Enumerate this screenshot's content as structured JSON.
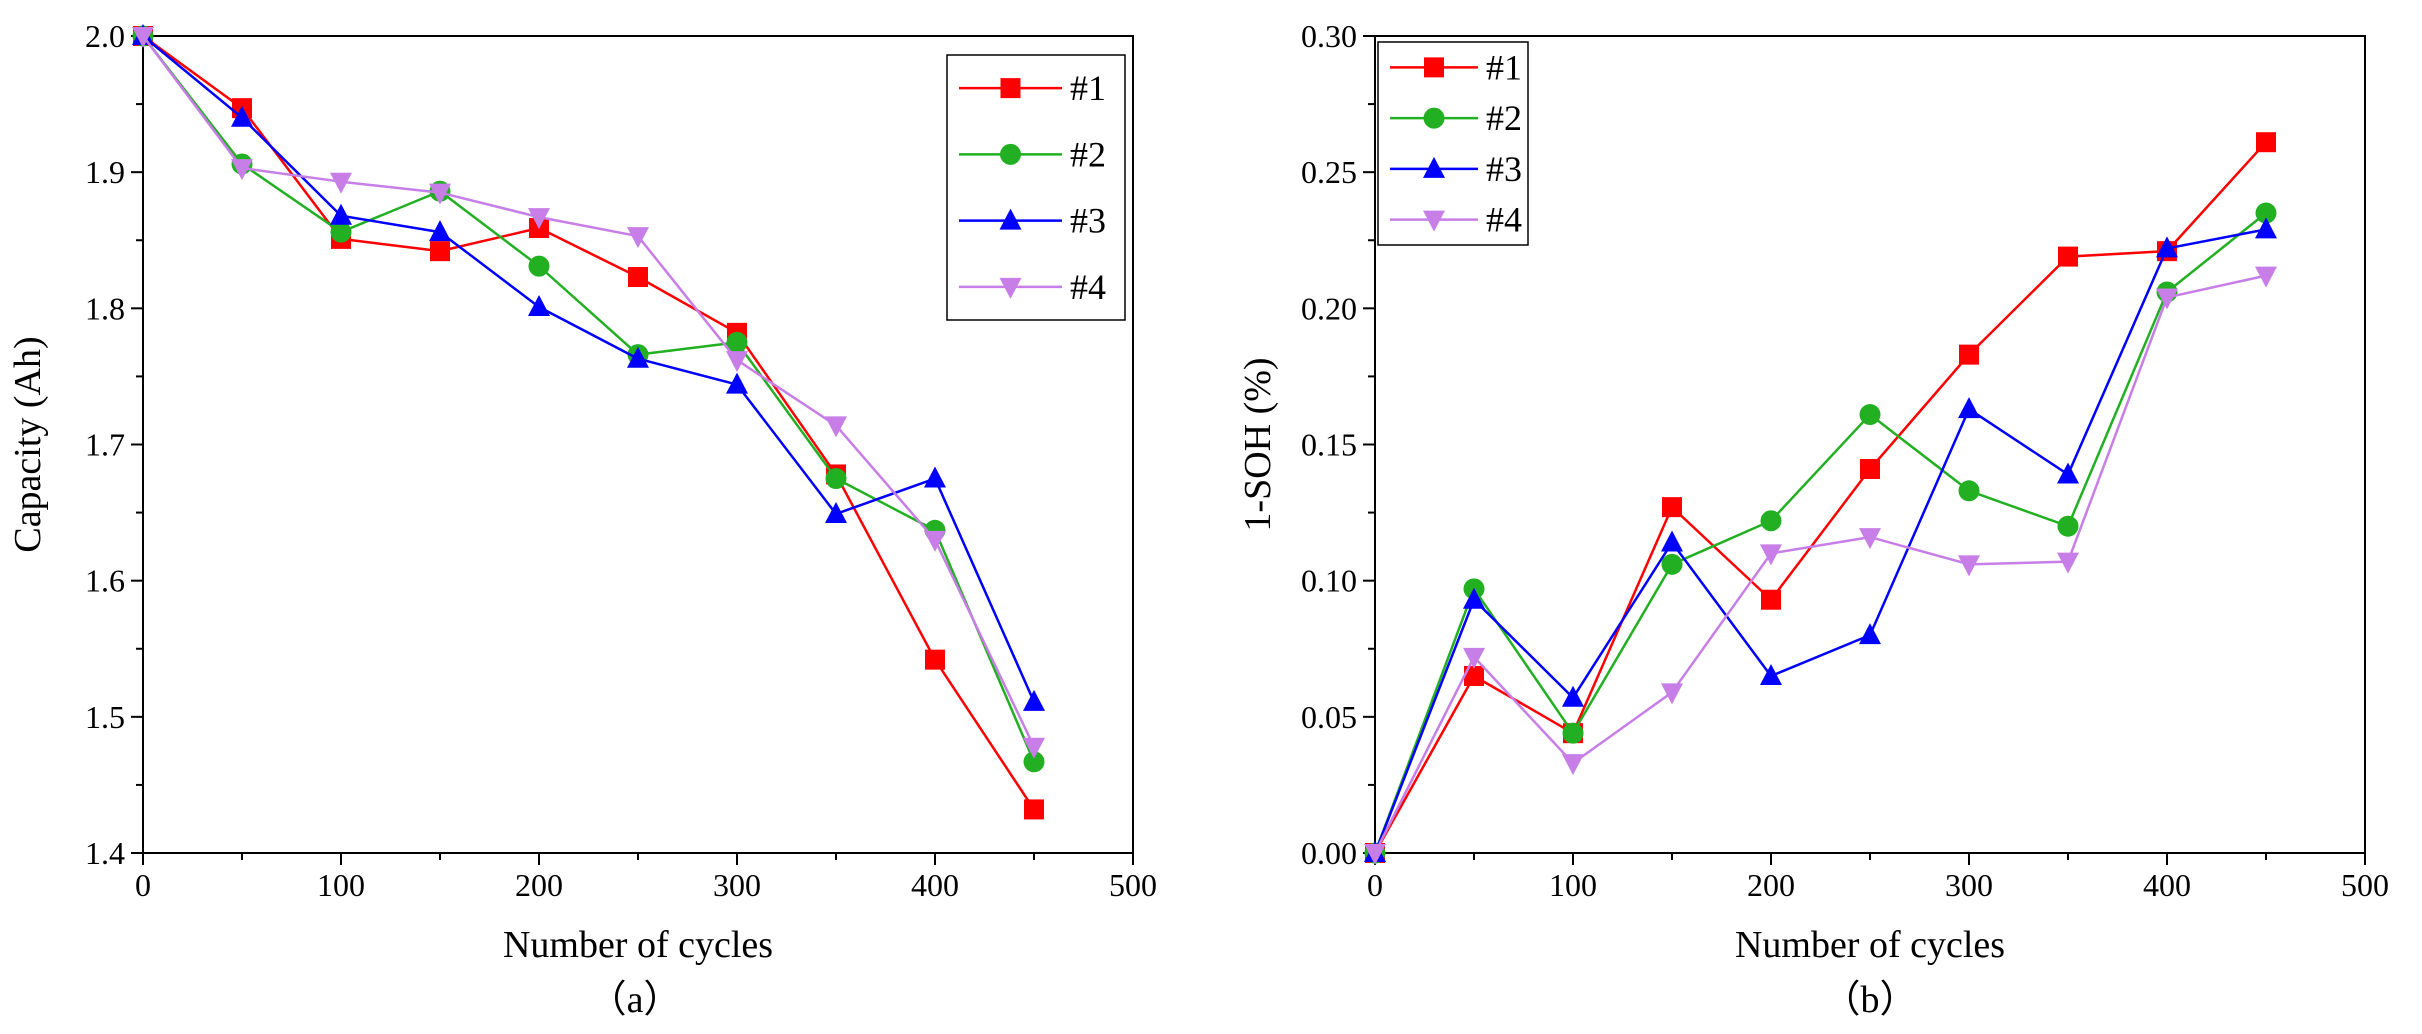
{
  "chart_data": [
    {
      "type": "line",
      "caption": "（a）",
      "xlabel": "Number of cycles",
      "ylabel": "Capacity (Ah)",
      "xlim": [
        0,
        500
      ],
      "ylim": [
        1.4,
        2.0
      ],
      "xticks": [
        0,
        100,
        200,
        300,
        400,
        500
      ],
      "yticks": [
        1.4,
        1.5,
        1.6,
        1.7,
        1.8,
        1.9,
        2.0
      ],
      "xtick_labels": [
        "0",
        "100",
        "200",
        "300",
        "400",
        "500"
      ],
      "ytick_labels": [
        "1.4",
        "1.5",
        "1.6",
        "1.7",
        "1.8",
        "1.9",
        "2.0"
      ],
      "legend_position": "top-right",
      "x": [
        0,
        50,
        100,
        150,
        200,
        250,
        300,
        350,
        400,
        450
      ],
      "series": [
        {
          "name": "#1",
          "color": "#ff0000",
          "marker": "square",
          "values": [
            2.0,
            1.947,
            1.851,
            1.842,
            1.859,
            1.823,
            1.782,
            1.678,
            1.542,
            1.432
          ]
        },
        {
          "name": "#2",
          "color": "#22b022",
          "marker": "circle",
          "values": [
            2.0,
            1.906,
            1.856,
            1.886,
            1.831,
            1.766,
            1.775,
            1.675,
            1.637,
            1.467
          ]
        },
        {
          "name": "#3",
          "color": "#0000ff",
          "marker": "triangle-up",
          "values": [
            2.0,
            1.94,
            1.868,
            1.856,
            1.801,
            1.763,
            1.744,
            1.649,
            1.675,
            1.511
          ]
        },
        {
          "name": "#4",
          "color": "#c77ee6",
          "marker": "triangle-down",
          "values": [
            2.0,
            1.903,
            1.893,
            1.885,
            1.867,
            1.853,
            1.762,
            1.714,
            1.63,
            1.478
          ]
        }
      ]
    },
    {
      "type": "line",
      "caption": "（b）",
      "xlabel": "Number of cycles",
      "ylabel": "1-SOH (%)",
      "xlim": [
        0,
        500
      ],
      "ylim": [
        0.0,
        0.3
      ],
      "xticks": [
        0,
        100,
        200,
        300,
        400,
        500
      ],
      "yticks": [
        0.0,
        0.05,
        0.1,
        0.15,
        0.2,
        0.25,
        0.3
      ],
      "xtick_labels": [
        "0",
        "100",
        "200",
        "300",
        "400",
        "500"
      ],
      "ytick_labels": [
        "0.00",
        "0.05",
        "0.10",
        "0.15",
        "0.20",
        "0.25",
        "0.30"
      ],
      "legend_position": "top-left",
      "x": [
        0,
        50,
        100,
        150,
        200,
        250,
        300,
        350,
        400,
        450
      ],
      "series": [
        {
          "name": "#1",
          "color": "#ff0000",
          "marker": "square",
          "values": [
            0.0,
            0.065,
            0.044,
            0.127,
            0.093,
            0.141,
            0.183,
            0.219,
            0.221,
            0.261
          ]
        },
        {
          "name": "#2",
          "color": "#22b022",
          "marker": "circle",
          "values": [
            0.0,
            0.097,
            0.044,
            0.106,
            0.122,
            0.161,
            0.133,
            0.12,
            0.206,
            0.235
          ]
        },
        {
          "name": "#3",
          "color": "#0000ff",
          "marker": "triangle-up",
          "values": [
            0.0,
            0.093,
            0.057,
            0.114,
            0.065,
            0.08,
            0.163,
            0.139,
            0.222,
            0.229
          ]
        },
        {
          "name": "#4",
          "color": "#c77ee6",
          "marker": "triangle-down",
          "values": [
            0.0,
            0.072,
            0.033,
            0.059,
            0.11,
            0.116,
            0.106,
            0.107,
            0.204,
            0.212
          ]
        }
      ]
    }
  ]
}
